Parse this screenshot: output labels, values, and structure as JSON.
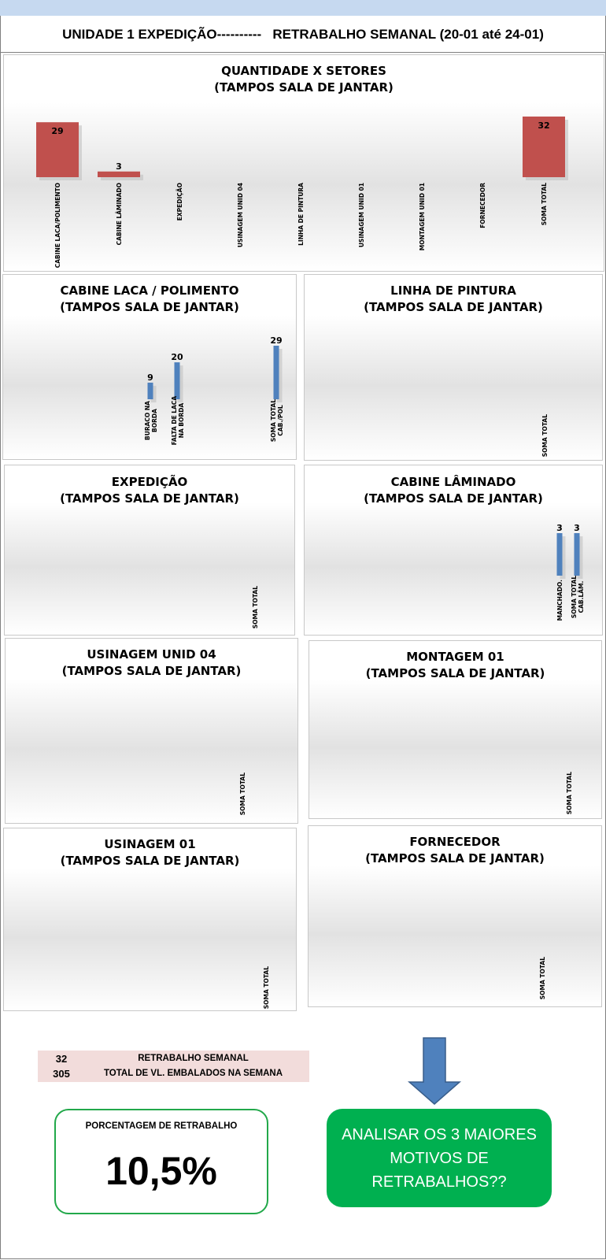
{
  "header": {
    "left": "UNIDADE 1 EXPEDIÇÃO----------",
    "right": "RETRABALHO SEMANAL (20-01 até 24-01)"
  },
  "chart_data": [
    {
      "id": "overview",
      "type": "bar",
      "title": "QUANTIDADE X SETORES",
      "subtitle": "(TAMPOS SALA DE JANTAR)",
      "color": "#c0504d",
      "categories": [
        "CABINE LACA/POLIMENTO",
        "CABINE LÂMINADO",
        "EXPEDIÇÃO",
        "USINAGEM UNID 04",
        "LINHA DE PINTURA",
        "USINAGEM UNID 01",
        "MONTAGEM UNID 01",
        "FORNECEDOR",
        "SOMA TOTAL"
      ],
      "values": [
        29,
        3,
        null,
        null,
        null,
        null,
        null,
        null,
        32
      ],
      "ylim": [
        0,
        32
      ]
    },
    {
      "id": "laca",
      "type": "bar",
      "title": "CABINE LACA / POLIMENTO",
      "subtitle": "(TAMPOS SALA DE JANTAR)",
      "color": "#4f81bd",
      "categories": [
        "BURACO NA BORDA",
        "FALTA DE LACA NA BORDA",
        "SOMA TOTAL CAB./POL"
      ],
      "values": [
        9,
        20,
        29
      ],
      "ylim": [
        0,
        29
      ]
    },
    {
      "id": "pintura",
      "type": "bar",
      "title": "LINHA DE PINTURA",
      "subtitle": "(TAMPOS SALA DE JANTAR)",
      "color": "#4f81bd",
      "categories": [
        "SOMA TOTAL"
      ],
      "values": [
        null
      ],
      "ylim": [
        0,
        1
      ]
    },
    {
      "id": "expedicao",
      "type": "bar",
      "title": "EXPEDIÇÃO",
      "subtitle": "(TAMPOS SALA DE JANTAR)",
      "color": "#4f81bd",
      "categories": [
        "SOMA TOTAL"
      ],
      "values": [
        null
      ],
      "ylim": [
        0,
        1
      ]
    },
    {
      "id": "laminado",
      "type": "bar",
      "title": "CABINE LÂMINADO",
      "subtitle": "(TAMPOS SALA DE JANTAR)",
      "color": "#4f81bd",
      "categories": [
        "MANCHADO.",
        "SOMA TOTAL CAB.LÂM."
      ],
      "values": [
        3,
        3
      ],
      "ylim": [
        0,
        3
      ]
    },
    {
      "id": "usinagem04",
      "type": "bar",
      "title": "USINAGEM UNID 04",
      "subtitle": "(TAMPOS SALA DE JANTAR)",
      "color": "#4f81bd",
      "categories": [
        "SOMA TOTAL"
      ],
      "values": [
        null
      ],
      "ylim": [
        0,
        1
      ]
    },
    {
      "id": "montagem01",
      "type": "bar",
      "title": "MONTAGEM 01",
      "subtitle": "(TAMPOS SALA DE JANTAR)",
      "color": "#4f81bd",
      "categories": [
        "SOMA TOTAL"
      ],
      "values": [
        null
      ],
      "ylim": [
        0,
        1
      ]
    },
    {
      "id": "usinagem01",
      "type": "bar",
      "title": "USINAGEM 01",
      "subtitle": "(TAMPOS SALA DE JANTAR)",
      "color": "#4f81bd",
      "categories": [
        "SOMA TOTAL"
      ],
      "values": [
        null
      ],
      "ylim": [
        0,
        1
      ]
    },
    {
      "id": "fornecedor",
      "type": "bar",
      "title": "FORNECEDOR",
      "subtitle": "(TAMPOS SALA DE JANTAR)",
      "color": "#4f81bd",
      "categories": [
        "SOMA TOTAL"
      ],
      "values": [
        null
      ],
      "ylim": [
        0,
        1
      ]
    }
  ],
  "summary": {
    "rows": [
      {
        "value": "32",
        "label": "RETRABALHO SEMANAL"
      },
      {
        "value": "305",
        "label": "TOTAL DE VL. EMBALADOS NA SEMANA"
      }
    ]
  },
  "percentage": {
    "label": "PORCENTAGEM DE RETRABALHO",
    "value": "10,5%"
  },
  "callout": {
    "text": "ANALISAR OS 3 MAIORES MOTIVOS DE RETRABALHOS??",
    "arrow_color": "#4f81bd"
  }
}
